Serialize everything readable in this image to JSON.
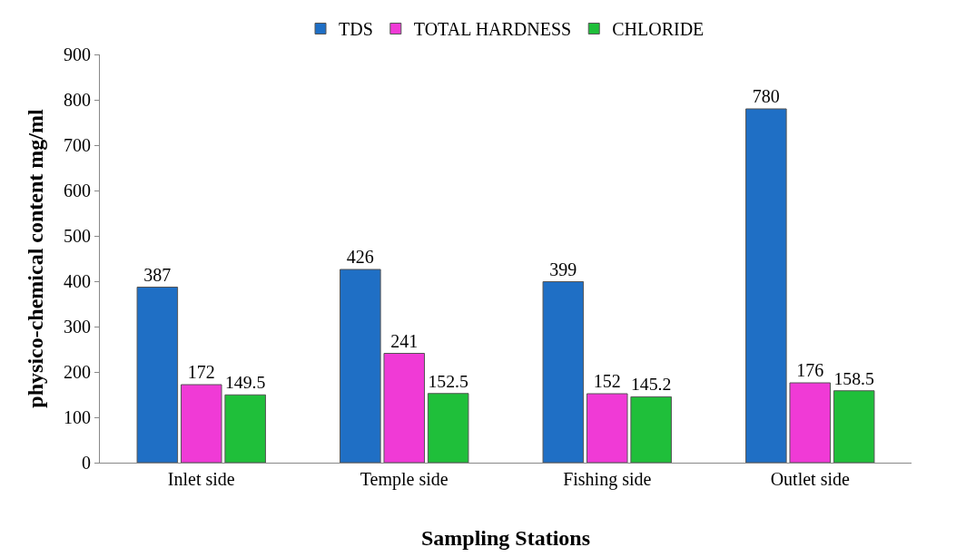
{
  "chart_data": {
    "type": "bar",
    "xlabel": "Sampling Stations",
    "ylabel": "physico-chemical content mg/ml",
    "categories": [
      "Inlet side",
      "Temple side",
      "Fishing side",
      "Outlet side"
    ],
    "series": [
      {
        "name": "TDS",
        "color": "#1f6fc5",
        "values": [
          387,
          426,
          399,
          780
        ]
      },
      {
        "name": "TOTAL HARDNESS",
        "color": "#f03ad6",
        "values": [
          172,
          241,
          152,
          176
        ]
      },
      {
        "name": "CHLORIDE",
        "color": "#1fbf3a",
        "values": [
          149.5,
          152.5,
          145.2,
          158.5
        ]
      }
    ],
    "ylim": [
      0,
      900
    ],
    "yticks": [
      0,
      100,
      200,
      300,
      400,
      500,
      600,
      700,
      800,
      900
    ],
    "data_labels": true,
    "legend": "top"
  }
}
